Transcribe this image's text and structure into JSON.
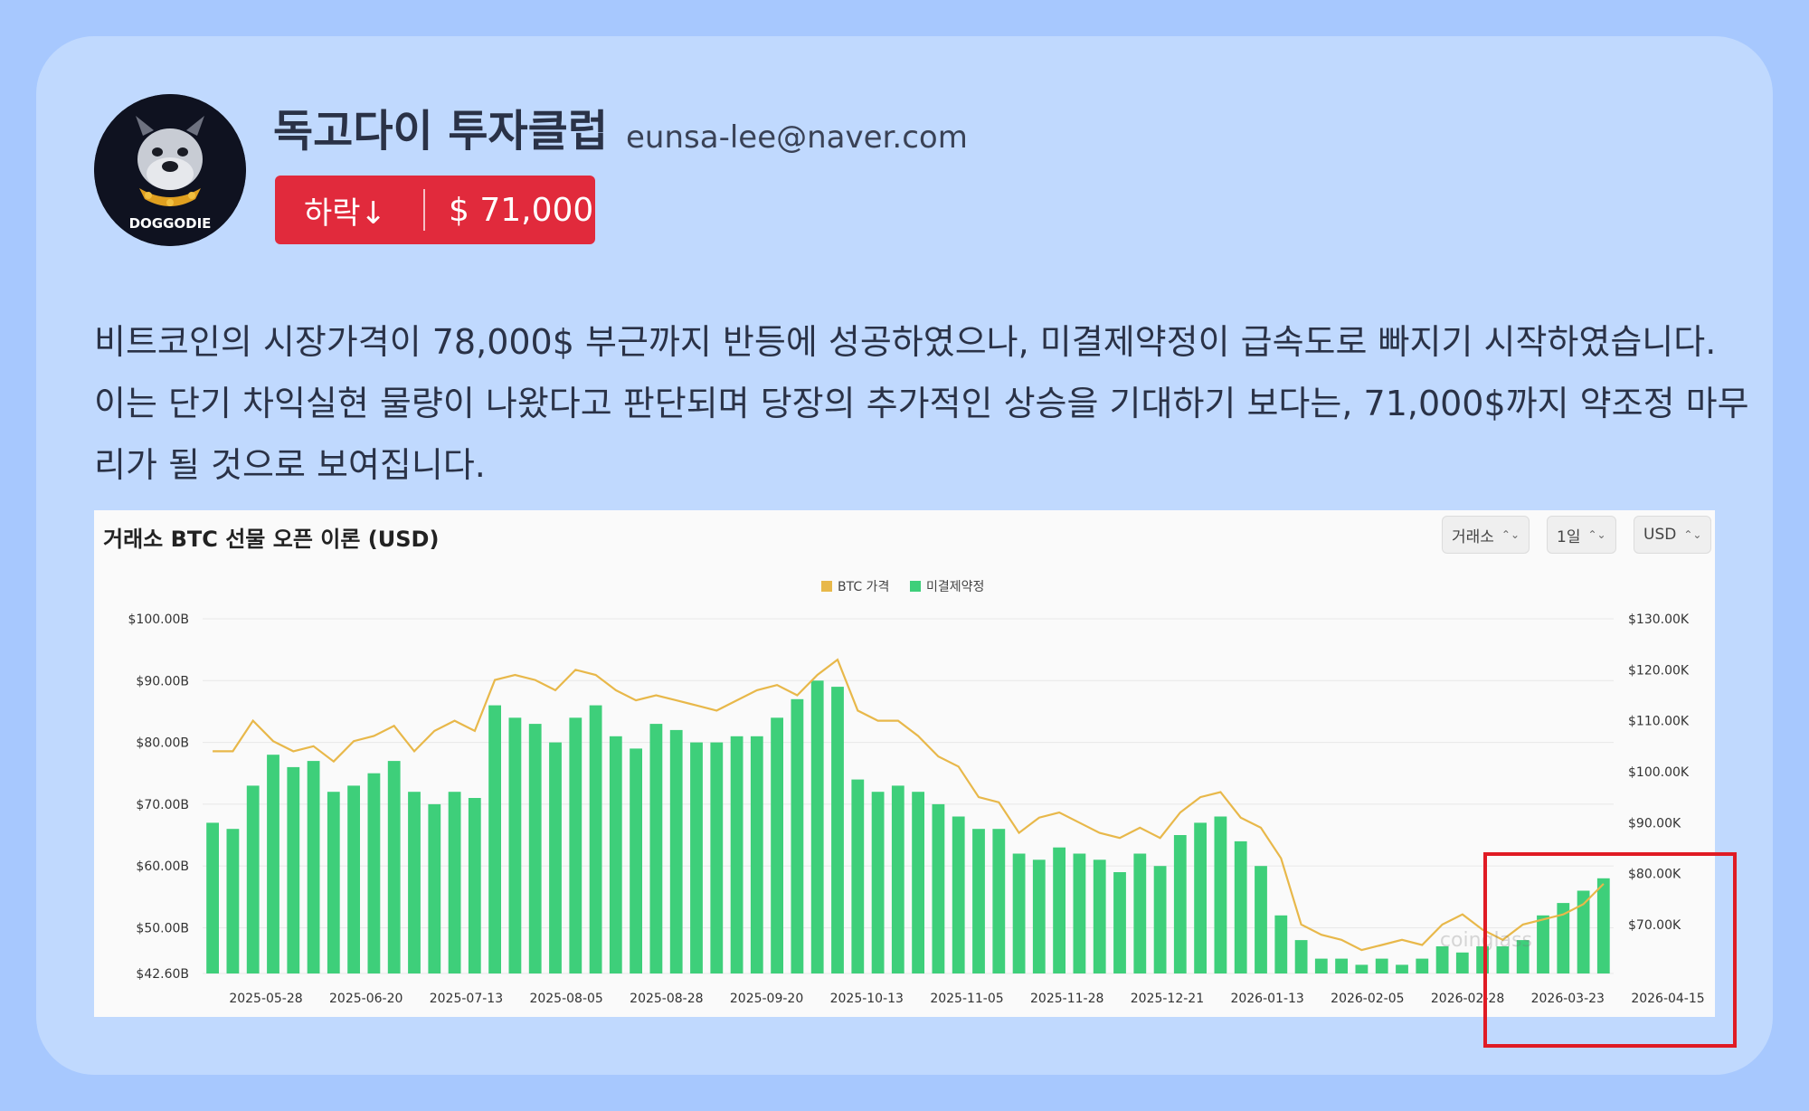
{
  "author": {
    "name": "독고다이 투자클럽",
    "email": "eunsa-lee@naver.com",
    "avatar_icon": "bulldog-logo-icon",
    "avatar_text": "DOGGODIE"
  },
  "badge": {
    "trend_label": "하락↓",
    "price_label": "$ 71,000",
    "color": "#e12a3c"
  },
  "post": {
    "body": "비트코인의 시장가격이 78,000$ 부근까지 반등에 성공하였으나, 미결제약정이 급속도로 빠지기 시작하였습니다. 이는 단기 차익실현 물량이 나왔다고 판단되며 당장의 추가적인 상승을 기대하기 보다는, 71,000$까지 약조정 마무리가 될 것으로 보여집니다."
  },
  "chart": {
    "title": "거래소 BTC 선물 오픈 이론 (USD)",
    "controls": [
      {
        "label": "거래소",
        "icon": "updown-chevron-icon"
      },
      {
        "label": "1일",
        "icon": "updown-chevron-icon"
      },
      {
        "label": "USD",
        "icon": "updown-chevron-icon"
      }
    ],
    "watermark": "coinglass",
    "highlight_color": "#e01b24"
  },
  "chart_data": {
    "type": "bar",
    "legend": [
      {
        "name": "BTC 가격",
        "color": "#e8b84a"
      },
      {
        "name": "미결제약정",
        "color": "#3ecf7a"
      }
    ],
    "legend_position": "top-center",
    "x_labels": [
      "2025-05-28",
      "2025-06-20",
      "2025-07-13",
      "2025-08-05",
      "2025-08-28",
      "2025-09-20",
      "2025-10-13",
      "2025-11-05",
      "2025-11-28",
      "2025-12-21",
      "2026-01-13",
      "2026-02-05",
      "2026-02-28",
      "2026-03-23",
      "2026-04-15"
    ],
    "left_axis": {
      "ticks": [
        "$42.60B",
        "$50.00B",
        "$60.00B",
        "$70.00B",
        "$80.00B",
        "$90.00B",
        "$100.00B"
      ],
      "range": [
        42.6,
        100
      ]
    },
    "right_axis": {
      "ticks": [
        "$70.00K",
        "$80.00K",
        "$90.00K",
        "$100.00K",
        "$110.00K",
        "$120.00K",
        "$130.00K"
      ],
      "range": [
        60.4,
        130
      ]
    },
    "grid": true,
    "x": [
      "2025-05-10",
      "2025-05-15",
      "2025-05-20",
      "2025-05-25",
      "2025-05-30",
      "2025-06-04",
      "2025-06-09",
      "2025-06-14",
      "2025-06-19",
      "2025-06-24",
      "2025-06-29",
      "2025-07-04",
      "2025-07-09",
      "2025-07-14",
      "2025-07-19",
      "2025-07-24",
      "2025-07-29",
      "2025-08-03",
      "2025-08-08",
      "2025-08-13",
      "2025-08-18",
      "2025-08-23",
      "2025-08-28",
      "2025-09-02",
      "2025-09-07",
      "2025-09-12",
      "2025-09-17",
      "2025-09-22",
      "2025-09-27",
      "2025-10-02",
      "2025-10-07",
      "2025-10-12",
      "2025-10-17",
      "2025-10-22",
      "2025-10-27",
      "2025-11-01",
      "2025-11-06",
      "2025-11-11",
      "2025-11-16",
      "2025-11-21",
      "2025-11-26",
      "2025-12-01",
      "2025-12-06",
      "2025-12-11",
      "2025-12-16",
      "2025-12-21",
      "2025-12-26",
      "2025-12-31",
      "2026-01-05",
      "2026-01-10",
      "2026-01-15",
      "2026-01-20",
      "2026-01-25",
      "2026-01-30",
      "2026-02-04",
      "2026-02-09",
      "2026-02-14",
      "2026-02-19",
      "2026-02-24",
      "2026-03-01",
      "2026-03-06",
      "2026-03-11",
      "2026-03-16",
      "2026-03-21",
      "2026-03-26",
      "2026-03-31",
      "2026-04-05",
      "2026-04-10",
      "2026-04-15",
      "2026-04-20"
    ],
    "series": [
      {
        "name": "미결제약정",
        "axis": "left",
        "values": [
          67,
          66,
          73,
          78,
          76,
          77,
          72,
          73,
          75,
          77,
          72,
          70,
          72,
          71,
          86,
          84,
          83,
          80,
          84,
          86,
          81,
          79,
          83,
          82,
          80,
          80,
          81,
          81,
          84,
          87,
          90,
          89,
          74,
          72,
          73,
          72,
          70,
          68,
          66,
          66,
          62,
          61,
          63,
          62,
          61,
          59,
          62,
          60,
          65,
          67,
          68,
          64,
          60,
          52,
          48,
          45,
          45,
          44,
          45,
          44,
          45,
          47,
          46,
          47,
          47,
          48,
          52,
          54,
          56,
          58
        ]
      },
      {
        "name": "BTC 가격",
        "axis": "right",
        "values": [
          104,
          104,
          110,
          106,
          104,
          105,
          102,
          106,
          107,
          109,
          104,
          108,
          110,
          108,
          118,
          119,
          118,
          116,
          120,
          119,
          116,
          114,
          115,
          114,
          113,
          112,
          114,
          116,
          117,
          115,
          119,
          122,
          112,
          110,
          110,
          107,
          103,
          101,
          95,
          94,
          88,
          91,
          92,
          90,
          88,
          87,
          89,
          87,
          92,
          95,
          96,
          91,
          89,
          83,
          70,
          68,
          67,
          65,
          66,
          67,
          66,
          70,
          72,
          69,
          67,
          70,
          71,
          72,
          74,
          78
        ]
      }
    ]
  }
}
